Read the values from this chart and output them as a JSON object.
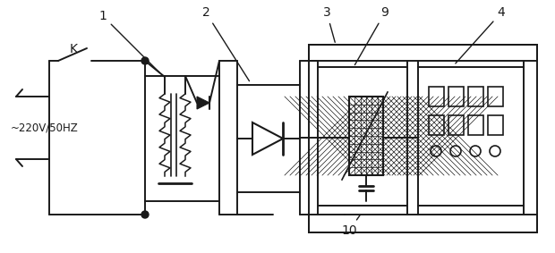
{
  "background_color": "#ffffff",
  "line_color": "#1a1a1a",
  "ac_label": "~220V/50HZ",
  "figsize": [
    6.2,
    2.83
  ],
  "dpi": 100
}
